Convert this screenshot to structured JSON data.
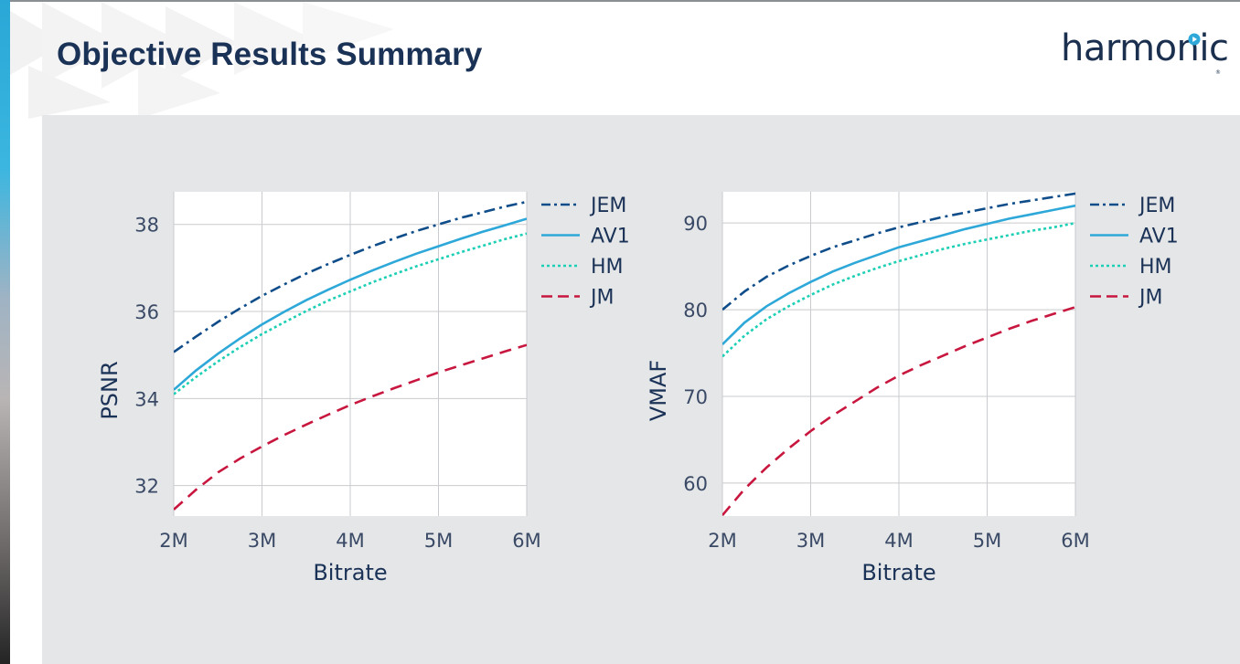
{
  "page": {
    "title": "Objective Results Summary",
    "logo_text": "harmonic",
    "logo_mark": "®"
  },
  "colors": {
    "JEM": "#0f4d8a",
    "AV1": "#2ea8d8",
    "HM": "#1ccfb5",
    "JM": "#c8173f",
    "title": "#1b3257",
    "panel": "#e5e6e8"
  },
  "chart_data": [
    {
      "type": "line",
      "title": "",
      "xlabel": "Bitrate",
      "ylabel": "PSNR",
      "x": [
        2,
        2.25,
        2.5,
        2.75,
        3,
        3.25,
        3.5,
        3.75,
        4,
        4.25,
        4.5,
        4.75,
        5,
        5.25,
        5.5,
        5.75,
        6
      ],
      "xticks": [
        2,
        3,
        4,
        5,
        6
      ],
      "xticklabels": [
        "2M",
        "3M",
        "4M",
        "5M",
        "6M"
      ],
      "xlim": [
        2,
        6
      ],
      "ylim": [
        31.3,
        38.75
      ],
      "yticks": [
        32,
        34,
        36,
        38
      ],
      "grid": true,
      "legend_position": "right",
      "series": [
        {
          "name": "JEM",
          "style": "dashdot",
          "values": [
            35.07,
            35.42,
            35.76,
            36.07,
            36.36,
            36.62,
            36.87,
            37.09,
            37.3,
            37.5,
            37.68,
            37.85,
            38.0,
            38.15,
            38.28,
            38.41,
            38.52
          ]
        },
        {
          "name": "AV1",
          "style": "solid",
          "values": [
            34.2,
            34.64,
            35.03,
            35.38,
            35.7,
            35.99,
            36.26,
            36.5,
            36.73,
            36.94,
            37.14,
            37.33,
            37.5,
            37.67,
            37.83,
            37.98,
            38.13
          ]
        },
        {
          "name": "HM",
          "style": "dotted",
          "values": [
            34.1,
            34.49,
            34.85,
            35.18,
            35.48,
            35.75,
            36.01,
            36.25,
            36.46,
            36.67,
            36.86,
            37.04,
            37.2,
            37.36,
            37.51,
            37.66,
            37.79
          ]
        },
        {
          "name": "JM",
          "style": "dashed",
          "values": [
            31.45,
            31.9,
            32.3,
            32.62,
            32.9,
            33.16,
            33.4,
            33.63,
            33.85,
            34.05,
            34.24,
            34.42,
            34.6,
            34.76,
            34.92,
            35.08,
            35.23
          ]
        }
      ]
    },
    {
      "type": "line",
      "title": "",
      "xlabel": "Bitrate",
      "ylabel": "VMAF",
      "x": [
        2,
        2.25,
        2.5,
        2.75,
        3,
        3.25,
        3.5,
        3.75,
        4,
        4.25,
        4.5,
        4.75,
        5,
        5.25,
        5.5,
        5.75,
        6
      ],
      "xticks": [
        2,
        3,
        4,
        5,
        6
      ],
      "xticklabels": [
        "2M",
        "3M",
        "4M",
        "5M",
        "6M"
      ],
      "xlim": [
        2,
        6
      ],
      "ylim": [
        56.2,
        93.6
      ],
      "yticks": [
        60,
        70,
        80,
        90
      ],
      "grid": true,
      "legend_position": "right",
      "series": [
        {
          "name": "JEM",
          "style": "dashdot",
          "values": [
            80.0,
            82.1,
            83.8,
            85.1,
            86.2,
            87.2,
            88.0,
            88.8,
            89.5,
            90.1,
            90.7,
            91.2,
            91.7,
            92.2,
            92.6,
            93.0,
            93.4
          ]
        },
        {
          "name": "AV1",
          "style": "solid",
          "values": [
            76.0,
            78.5,
            80.4,
            81.9,
            83.2,
            84.4,
            85.4,
            86.3,
            87.2,
            87.9,
            88.6,
            89.3,
            89.9,
            90.5,
            91.0,
            91.5,
            92.0
          ]
        },
        {
          "name": "HM",
          "style": "dotted",
          "values": [
            74.6,
            77.0,
            78.9,
            80.4,
            81.7,
            82.9,
            83.9,
            84.8,
            85.6,
            86.3,
            87.0,
            87.6,
            88.1,
            88.6,
            89.1,
            89.5,
            90.0
          ]
        },
        {
          "name": "JM",
          "style": "dashed",
          "values": [
            56.3,
            59.3,
            61.8,
            64.0,
            66.0,
            67.8,
            69.4,
            71.0,
            72.4,
            73.6,
            74.7,
            75.8,
            76.8,
            77.8,
            78.7,
            79.5,
            80.3
          ]
        }
      ]
    }
  ]
}
